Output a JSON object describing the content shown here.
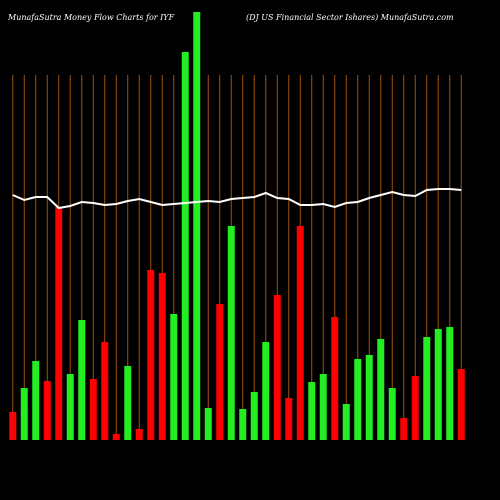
{
  "chart_data": {
    "type": "bar-line",
    "title": "MunafaSutra  Money Flow  Charts for IYF",
    "subtitle": "(DJ US Financial Sector Ishares) MunafaSutra.com",
    "grid": true,
    "grid_color": "#a0520d",
    "series": [
      {
        "type": "bar",
        "colors": [
          "#ff0000",
          "#22ee22",
          "#22ee22",
          "#ff0000",
          "#ff0000",
          "#22ee22",
          "#22ee22",
          "#ff0000",
          "#ff0000",
          "#ff0000",
          "#22ee22",
          "#ff0000",
          "#ff0000",
          "#ff0000",
          "#22ee22",
          "#22ee22",
          "#22ee22",
          "#22ee22",
          "#ff0000",
          "#22ee22",
          "#22ee22",
          "#22ee22",
          "#22ee22",
          "#ff0000",
          "#ff0000",
          "#ff0000",
          "#22ee22",
          "#22ee22",
          "#ff0000",
          "#22ee22",
          "#22ee22",
          "#22ee22",
          "#22ee22",
          "#22ee22",
          "#ff0000",
          "#ff0000",
          "#22ee22",
          "#22ee22",
          "#22ee22",
          "#ff0000"
        ],
        "values": [
          28,
          52,
          79,
          59,
          233,
          66,
          120,
          61,
          98,
          6,
          74,
          11,
          170,
          167,
          126,
          388,
          428,
          32,
          136,
          214,
          31,
          48,
          98,
          145,
          42,
          214,
          58,
          66,
          123,
          36,
          81,
          85,
          101,
          52,
          22,
          64,
          103,
          111,
          113,
          71
        ]
      },
      {
        "type": "line",
        "color": "#ffffff",
        "values": [
          245,
          240,
          243,
          243,
          232,
          234,
          238,
          237,
          235,
          236,
          239,
          241,
          238,
          235,
          236,
          237,
          238,
          239,
          238,
          241,
          242,
          243,
          247,
          242,
          241,
          235,
          235,
          236,
          233,
          237,
          238,
          242,
          245,
          248,
          245,
          244,
          250,
          251,
          251,
          250
        ]
      }
    ]
  }
}
